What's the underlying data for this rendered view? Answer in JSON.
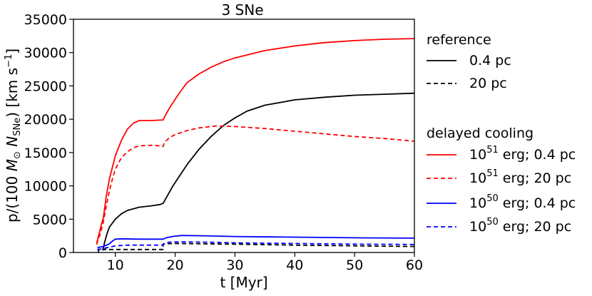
{
  "chart_data": {
    "type": "line",
    "title": "3 SNe",
    "xlabel": "t [Myr]",
    "ylabel_parts": [
      "p/(100 ",
      "M",
      "⊙",
      " N",
      "SNe",
      ") [km s",
      "−1",
      "]"
    ],
    "xlim": [
      3,
      60
    ],
    "ylim": [
      0,
      35000
    ],
    "xticks": [
      10,
      20,
      30,
      40,
      50,
      60
    ],
    "yticks": [
      0,
      5000,
      10000,
      15000,
      20000,
      25000,
      30000,
      35000
    ],
    "legend": {
      "placement": "right",
      "groups": [
        {
          "title": "reference",
          "entries": [
            {
              "series_index": 0,
              "label": "0.4 pc"
            },
            {
              "series_index": 1,
              "label": "20 pc"
            }
          ]
        },
        {
          "title": "delayed cooling",
          "entries": [
            {
              "series_index": 2,
              "mantissa": "10",
              "exponent": "51",
              "rest": " erg; 0.4 pc"
            },
            {
              "series_index": 3,
              "mantissa": "10",
              "exponent": "51",
              "rest": " erg; 20 pc"
            },
            {
              "series_index": 4,
              "mantissa": "10",
              "exponent": "50",
              "rest": " erg; 0.4 pc"
            },
            {
              "series_index": 5,
              "mantissa": "10",
              "exponent": "50",
              "rest": " erg; 20 pc"
            }
          ]
        }
      ]
    },
    "series": [
      {
        "name": "reference 0.4 pc",
        "color": "#000000",
        "dashed": false,
        "x": [
          7.9,
          8.2,
          8.6,
          9.0,
          10.0,
          11.0,
          12.0,
          14.0,
          16.0,
          17.5,
          18.0,
          18.5,
          19.5,
          20.0,
          22.0,
          24.0,
          26.0,
          28.0,
          30.0,
          32.0,
          35.0,
          40.0,
          45.0,
          50.0,
          55.0,
          60.0
        ],
        "y": [
          300,
          1500,
          2800,
          3800,
          5000,
          5800,
          6300,
          6800,
          7000,
          7200,
          7400,
          8200,
          9800,
          10500,
          13200,
          15500,
          17400,
          19000,
          20200,
          21200,
          22100,
          22900,
          23300,
          23600,
          23750,
          23900
        ]
      },
      {
        "name": "reference 20 pc",
        "color": "#000000",
        "dashed": true,
        "x": [
          7.2,
          7.2,
          8.0,
          8.0,
          18.0,
          18.0,
          20.0,
          30.0,
          40.0,
          50.0,
          60.0
        ],
        "y": [
          0,
          500,
          500,
          450,
          450,
          1300,
          1350,
          1250,
          1100,
          1000,
          900
        ]
      },
      {
        "name": "1e51 erg 0.4 pc",
        "color": "#ff0000",
        "dashed": false,
        "x": [
          6.9,
          7.0,
          7.2,
          7.4,
          7.6,
          8.0,
          8.5,
          9.0,
          10.0,
          11.0,
          12.0,
          13.0,
          14.0,
          16.0,
          18.0,
          18.2,
          19.0,
          20.0,
          21.0,
          22.0,
          24.0,
          26.0,
          28.0,
          30.0,
          35.0,
          40.0,
          45.0,
          50.0,
          55.0,
          60.0
        ],
        "y": [
          1500,
          1800,
          2500,
          3200,
          4000,
          5200,
          8500,
          11000,
          14500,
          16800,
          18500,
          19400,
          19800,
          19800,
          19900,
          20300,
          21600,
          23000,
          24300,
          25500,
          26800,
          27800,
          28600,
          29200,
          30300,
          31000,
          31500,
          31800,
          32000,
          32100
        ]
      },
      {
        "name": "1e51 erg 20 pc",
        "color": "#ff0000",
        "dashed": true,
        "x": [
          6.9,
          7.0,
          7.5,
          8.0,
          8.5,
          9.0,
          9.5,
          10.0,
          11.0,
          12.0,
          13.0,
          14.0,
          16.0,
          17.5,
          18.0,
          18.2,
          19.0,
          20.0,
          22.0,
          24.0,
          27.0,
          30.0,
          35.0,
          40.0,
          45.0,
          50.0,
          55.0,
          60.0
        ],
        "y": [
          1200,
          1600,
          2800,
          4600,
          7000,
          9200,
          11000,
          12500,
          14200,
          15100,
          15700,
          16000,
          16100,
          16000,
          15900,
          16500,
          17200,
          17700,
          18300,
          18700,
          19000,
          18900,
          18600,
          18200,
          17800,
          17400,
          17100,
          16700
        ]
      },
      {
        "name": "1e50 erg 0.4 pc",
        "color": "#0000ff",
        "dashed": false,
        "x": [
          7.0,
          7.3,
          8.0,
          9.0,
          9.5,
          10.0,
          11.0,
          14.0,
          18.0,
          18.5,
          19.5,
          21.0,
          25.0,
          30.0,
          40.0,
          50.0,
          60.0
        ],
        "y": [
          700,
          800,
          900,
          1300,
          1700,
          2000,
          2050,
          2000,
          2000,
          2200,
          2400,
          2550,
          2500,
          2400,
          2300,
          2200,
          2150
        ]
      },
      {
        "name": "1e50 erg 20 pc",
        "color": "#0000ff",
        "dashed": true,
        "x": [
          7.0,
          7.5,
          8.0,
          9.0,
          10.0,
          12.0,
          18.0,
          18.3,
          19.0,
          21.0,
          25.0,
          30.0,
          40.0,
          50.0,
          60.0
        ],
        "y": [
          400,
          500,
          600,
          800,
          1000,
          1100,
          1100,
          1400,
          1550,
          1600,
          1550,
          1450,
          1350,
          1250,
          1200
        ]
      }
    ]
  }
}
